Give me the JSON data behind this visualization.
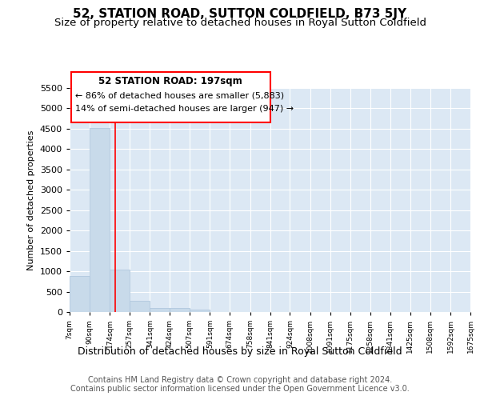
{
  "title": "52, STATION ROAD, SUTTON COLDFIELD, B73 5JY",
  "subtitle": "Size of property relative to detached houses in Royal Sutton Coldfield",
  "xlabel": "Distribution of detached houses by size in Royal Sutton Coldfield",
  "ylabel": "Number of detached properties",
  "footer_line1": "Contains HM Land Registry data © Crown copyright and database right 2024.",
  "footer_line2": "Contains public sector information licensed under the Open Government Licence v3.0.",
  "annotation_line1": "52 STATION ROAD: 197sqm",
  "annotation_line2": "← 86% of detached houses are smaller (5,883)",
  "annotation_line3": "14% of semi-detached houses are larger (947) →",
  "bar_edges": [
    7,
    90,
    174,
    257,
    341,
    424,
    507,
    591,
    674,
    758,
    841,
    924,
    1008,
    1091,
    1175,
    1258,
    1341,
    1425,
    1508,
    1592,
    1675
  ],
  "bar_heights": [
    880,
    4520,
    1050,
    280,
    100,
    100,
    60,
    0,
    0,
    0,
    0,
    0,
    0,
    0,
    0,
    0,
    0,
    0,
    0,
    0
  ],
  "bar_color": "#c8daea",
  "bar_edge_color": "#b0c8de",
  "redline_x": 197,
  "ylim": [
    0,
    5500
  ],
  "yticks": [
    0,
    500,
    1000,
    1500,
    2000,
    2500,
    3000,
    3500,
    4000,
    4500,
    5000,
    5500
  ],
  "bg_color": "#ffffff",
  "plot_bg_color": "#dce8f4",
  "grid_color": "#ffffff",
  "title_fontsize": 11,
  "subtitle_fontsize": 9.5
}
